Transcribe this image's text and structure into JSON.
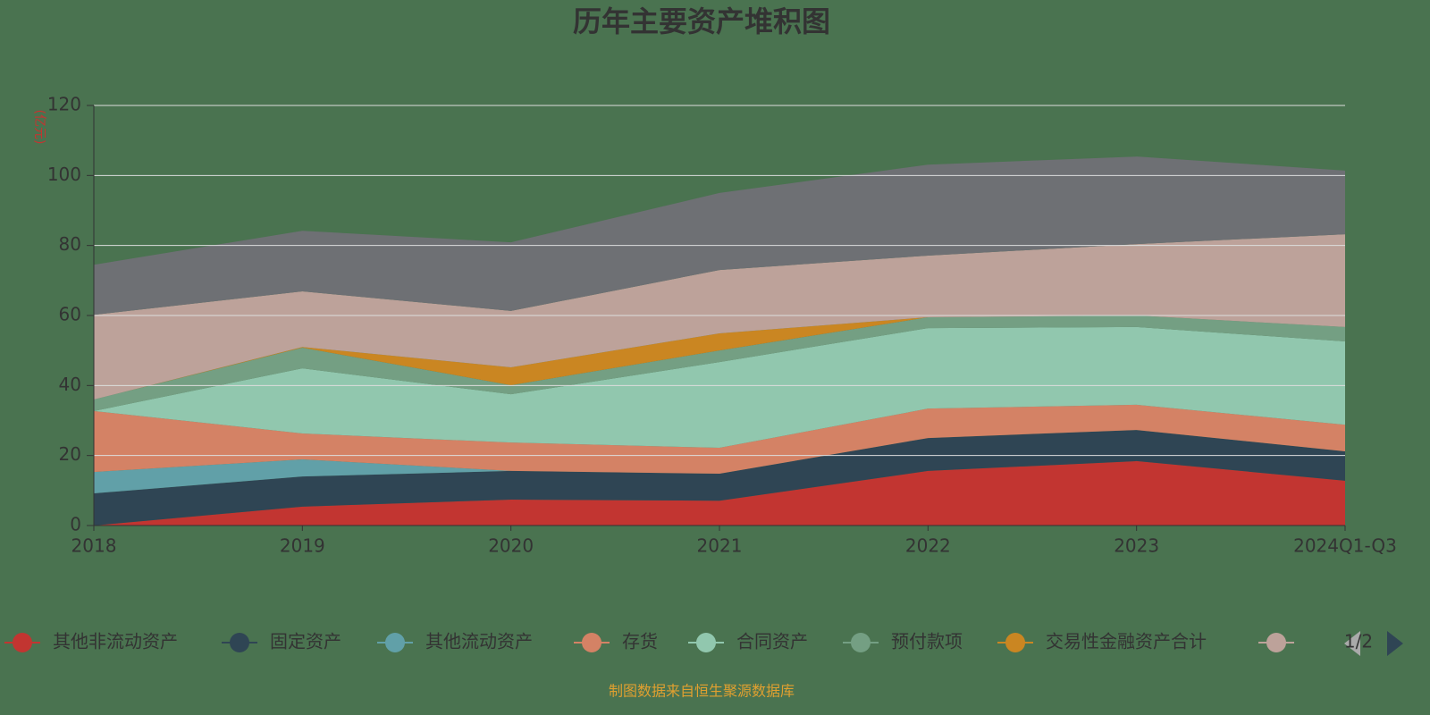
{
  "chart_data": {
    "type": "stacked_area",
    "title": "历年主要资产堆积图",
    "y_label": "(亿元)",
    "categories": [
      "2018",
      "2019",
      "2020",
      "2021",
      "2022",
      "2023",
      "2024Q1-Q3"
    ],
    "ylim": [
      0,
      120
    ],
    "yticks": [
      0,
      20,
      40,
      60,
      80,
      100,
      120
    ],
    "grid": true,
    "series": [
      {
        "name": "其他非流动资产",
        "color": "#c23531",
        "values": [
          0,
          5.4,
          7.4,
          7.1,
          15.6,
          18.4,
          12.8
        ]
      },
      {
        "name": "固定资产",
        "color": "#2f4554",
        "values": [
          9.2,
          8.6,
          8.2,
          7.7,
          9.4,
          8.9,
          8.4
        ]
      },
      {
        "name": "其他流动资产",
        "color": "#61a0a8",
        "values": [
          6.1,
          4.9,
          0,
          0,
          0,
          0,
          0
        ]
      },
      {
        "name": "存货",
        "color": "#d48265",
        "values": [
          17.4,
          7.4,
          8.1,
          7.4,
          8.4,
          7.2,
          7.6
        ]
      },
      {
        "name": "合同资产",
        "color": "#91c7ae",
        "values": [
          0,
          18.6,
          13.8,
          24.5,
          23,
          22.2,
          23.8
        ]
      },
      {
        "name": "预付款项",
        "color": "#749f83",
        "values": [
          3.3,
          5.9,
          2.6,
          3.3,
          3.1,
          3.3,
          4.1
        ]
      },
      {
        "name": "交易性金融资产合计",
        "color": "#ca8622",
        "values": [
          0,
          0.2,
          5.1,
          4.9,
          0,
          0,
          0
        ]
      },
      {
        "color": "#bda29a",
        "values": [
          24.2,
          15.9,
          16.1,
          18.1,
          17.6,
          20.4,
          26.5
        ]
      },
      {
        "color": "#6e7074",
        "values": [
          14.3,
          17.3,
          19.6,
          22,
          26,
          25,
          18.2
        ]
      }
    ],
    "legend_page": "1/2",
    "source": "制图数据来自恒生聚源数据库"
  }
}
